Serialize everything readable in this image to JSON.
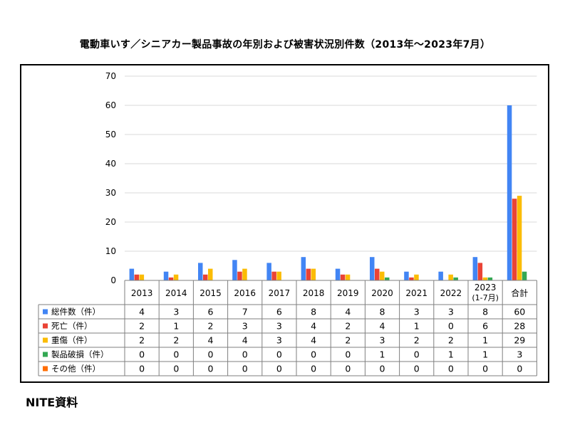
{
  "title": "電動車いす／シニアカー製品事故の年別および被害状況別件数（2013年〜2023年7月）",
  "source": "NITE資料",
  "chart_data": {
    "type": "bar",
    "categories": [
      "2013",
      "2014",
      "2015",
      "2016",
      "2017",
      "2018",
      "2019",
      "2020",
      "2021",
      "2022",
      "2023\n(1-7月)",
      "合計"
    ],
    "ylim": [
      0,
      70
    ],
    "yticks": [
      0,
      10,
      20,
      30,
      40,
      50,
      60,
      70
    ],
    "series": [
      {
        "name": "総件数（件）",
        "color": "#4285F4",
        "values": [
          4,
          3,
          6,
          7,
          6,
          8,
          4,
          8,
          3,
          3,
          8,
          60
        ]
      },
      {
        "name": "死亡（件）",
        "color": "#EA4335",
        "values": [
          2,
          1,
          2,
          3,
          3,
          4,
          2,
          4,
          1,
          0,
          6,
          28
        ]
      },
      {
        "name": "重傷（件）",
        "color": "#FBBC04",
        "values": [
          2,
          2,
          4,
          4,
          3,
          4,
          2,
          3,
          2,
          2,
          1,
          29
        ]
      },
      {
        "name": "製品破損（件）",
        "color": "#34A853",
        "values": [
          0,
          0,
          0,
          0,
          0,
          0,
          0,
          1,
          0,
          1,
          1,
          3
        ]
      },
      {
        "name": "その他（件）",
        "color": "#FF6D01",
        "values": [
          0,
          0,
          0,
          0,
          0,
          0,
          0,
          0,
          0,
          0,
          0,
          0
        ]
      }
    ]
  }
}
